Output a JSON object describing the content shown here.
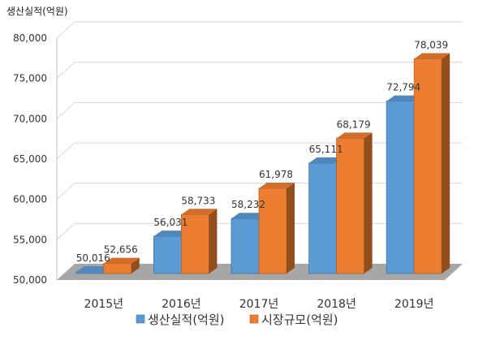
{
  "chart_data": {
    "type": "bar",
    "title": "",
    "ylabel": "생산실적(억원)",
    "xlabel": "",
    "categories": [
      "2015년",
      "2016년",
      "2017년",
      "2018년",
      "2019년"
    ],
    "series": [
      {
        "name": "생산실적(억원)",
        "values": [
          50016,
          56031,
          58232,
          65111,
          72794
        ],
        "labels": [
          "50,016",
          "56,031",
          "58,232",
          "65,111",
          "72,794"
        ],
        "color": "#5b9bd5"
      },
      {
        "name": "시장규모(억원)",
        "values": [
          52656,
          58733,
          61978,
          68179,
          78039
        ],
        "labels": [
          "52,656",
          "58,733",
          "61,978",
          "68,179",
          "78,039"
        ],
        "color": "#ed7d31"
      }
    ],
    "ylim": [
      50000,
      80000
    ],
    "yticks": [
      50000,
      55000,
      60000,
      65000,
      70000,
      75000,
      80000
    ],
    "ytick_labels": [
      "50,000",
      "55,000",
      "60,000",
      "65,000",
      "70,000",
      "75,000",
      "80,000"
    ],
    "grid": true,
    "legend_position": "bottom",
    "style": "3d-column"
  }
}
